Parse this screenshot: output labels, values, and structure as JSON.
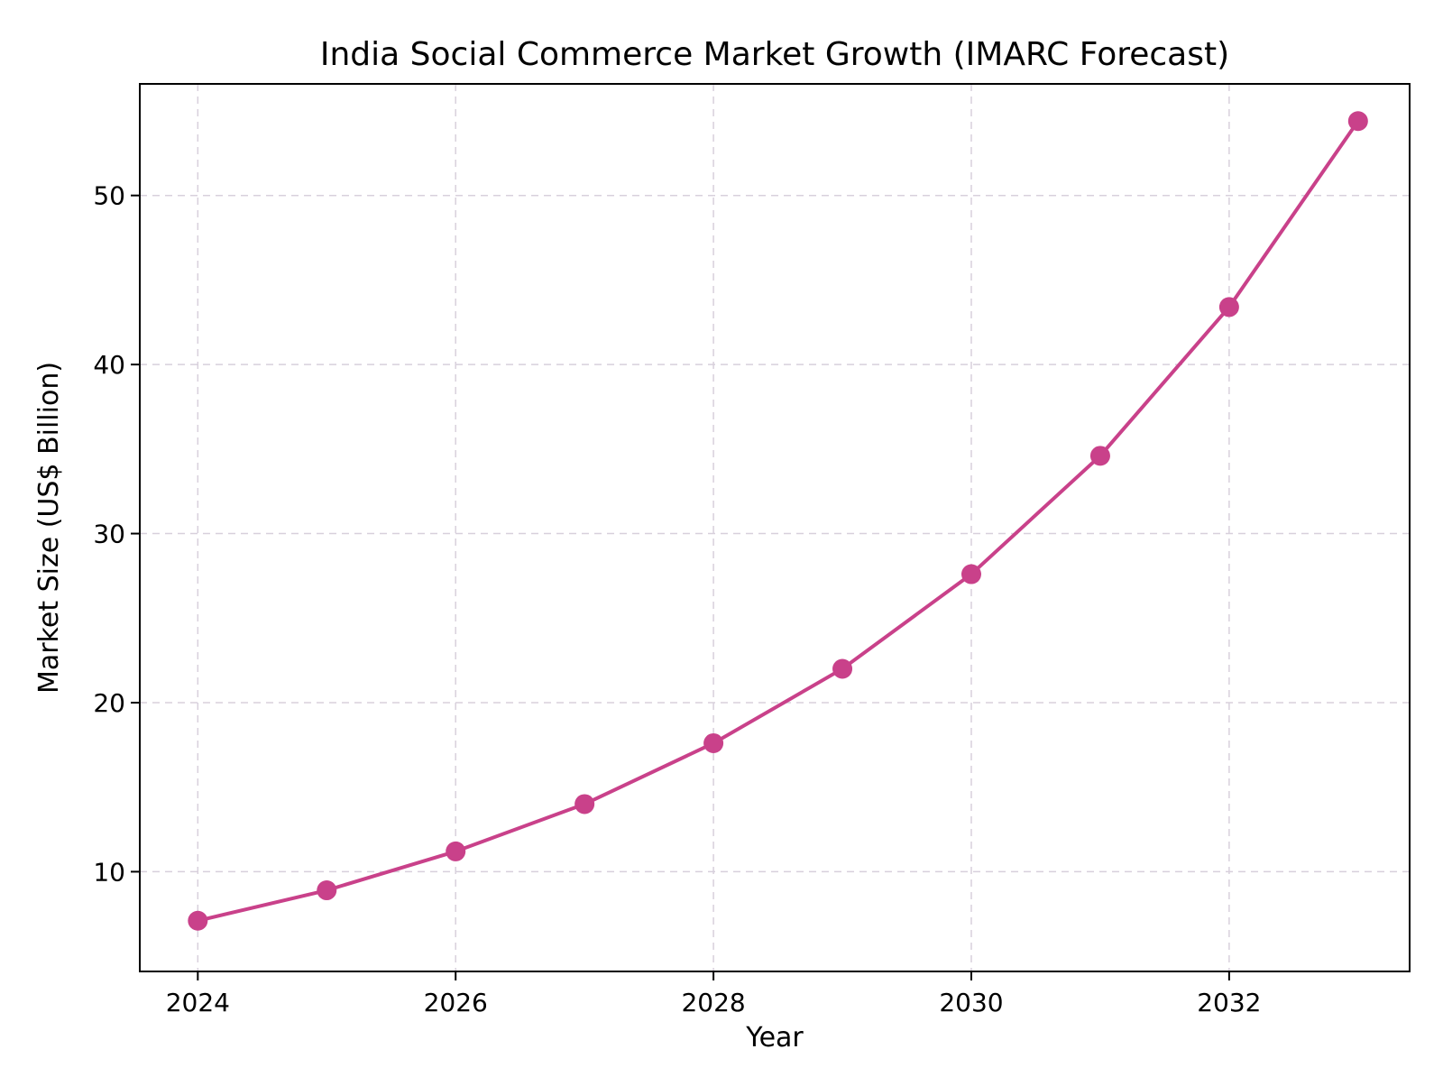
{
  "chart_data": {
    "type": "line",
    "title": "India Social Commerce Market Growth (IMARC Forecast)",
    "xlabel": "Year",
    "ylabel": "Market Size (US$ Billion)",
    "x": [
      2024,
      2025,
      2026,
      2027,
      2028,
      2029,
      2030,
      2031,
      2032,
      2033
    ],
    "series": [
      {
        "values": [
          7.1,
          8.9,
          11.2,
          14.0,
          17.6,
          22.0,
          27.6,
          34.6,
          43.4,
          54.4
        ],
        "color": "#c9418a",
        "marker": "circle"
      }
    ],
    "xticks": [
      "2024",
      "2026",
      "2028",
      "2030",
      "2032"
    ],
    "yticks": [
      "10",
      "20",
      "30",
      "40",
      "50"
    ],
    "xlim": [
      2023.55,
      2033.4
    ],
    "ylim": [
      4.1,
      56.6
    ],
    "grid": true,
    "grid_style": "dashed",
    "grid_color": "#d8d0dc"
  }
}
